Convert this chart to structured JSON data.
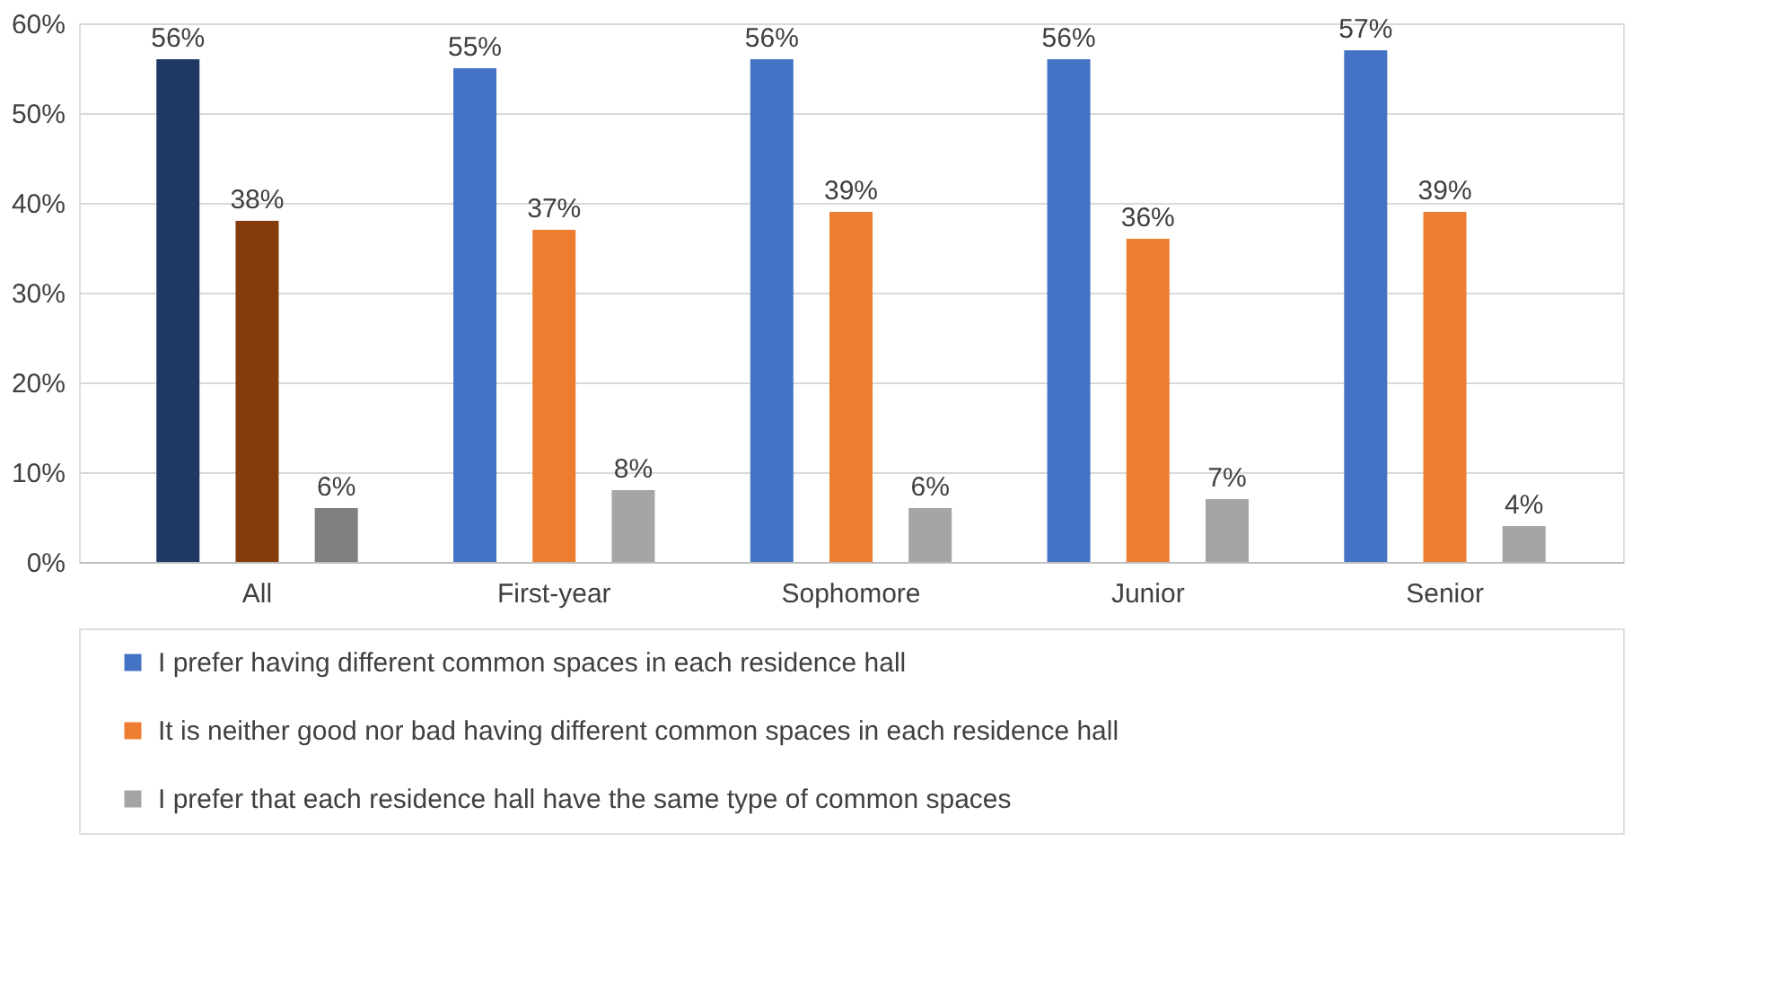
{
  "chart_data": {
    "type": "bar",
    "categories": [
      "All",
      "First-year",
      "Sophomore",
      "Junior",
      "Senior"
    ],
    "series": [
      {
        "name": "I prefer having different common spaces in each residence hall",
        "color": "#4472c4",
        "colors": [
          "#1f3864",
          "#4472c4",
          "#4472c4",
          "#4472c4",
          "#4472c4"
        ],
        "values": [
          56,
          55,
          56,
          56,
          57
        ],
        "value_labels": [
          "56%",
          "55%",
          "56%",
          "56%",
          "57%"
        ]
      },
      {
        "name": "It is neither good nor bad having different common spaces in each residence hall",
        "color": "#ed7d31",
        "colors": [
          "#843c0c",
          "#ed7d31",
          "#ed7d31",
          "#ed7d31",
          "#ed7d31"
        ],
        "values": [
          38,
          37,
          39,
          36,
          39
        ],
        "value_labels": [
          "38%",
          "37%",
          "39%",
          "36%",
          "39%"
        ]
      },
      {
        "name": "I prefer that each residence hall have the same type of common spaces",
        "color": "#a5a5a5",
        "colors": [
          "#7f7f7f",
          "#a5a5a5",
          "#a5a5a5",
          "#a5a5a5",
          "#a5a5a5"
        ],
        "values": [
          6,
          8,
          6,
          7,
          4
        ],
        "value_labels": [
          "6%",
          "8%",
          "6%",
          "7%",
          "4%"
        ]
      }
    ],
    "ylim": [
      0,
      60
    ],
    "yticks": [
      {
        "value": 0,
        "label": "0%"
      },
      {
        "value": 10,
        "label": "10%"
      },
      {
        "value": 20,
        "label": "20%"
      },
      {
        "value": 30,
        "label": "30%"
      },
      {
        "value": 40,
        "label": "40%"
      },
      {
        "value": 50,
        "label": "50%"
      },
      {
        "value": 60,
        "label": "60%"
      }
    ],
    "grid": "y",
    "legend": "bottom"
  }
}
